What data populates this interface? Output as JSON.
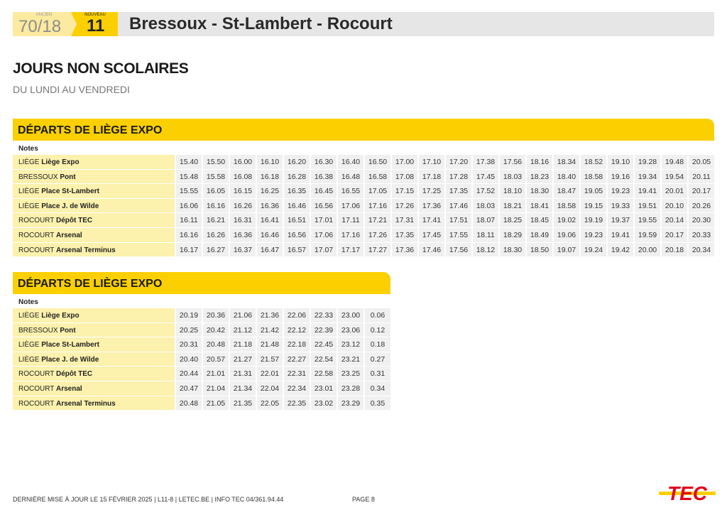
{
  "header": {
    "old_label": "ANCIEN",
    "old_number": "70/18",
    "new_label": "NOUVEAU",
    "new_number": "11",
    "title": "Bressoux - St-Lambert - Rocourt"
  },
  "section": {
    "title": "JOURS NON SCOLAIRES",
    "subtitle": "DU LUNDI AU VENDREDI"
  },
  "tables": [
    {
      "title": "DÉPARTS DE LIÈGE EXPO",
      "notes_label": "Notes",
      "rows": [
        {
          "town": "LIÈGE",
          "stop": "Liège Expo",
          "times": [
            "15.40",
            "15.50",
            "16.00",
            "16.10",
            "16.20",
            "16.30",
            "16.40",
            "16.50",
            "17.00",
            "17.10",
            "17.20",
            "17.38",
            "17.56",
            "18.16",
            "18.34",
            "18.52",
            "19.10",
            "19.28",
            "19.48",
            "20.05"
          ]
        },
        {
          "town": "BRESSOUX",
          "stop": "Pont",
          "times": [
            "15.48",
            "15.58",
            "16.08",
            "16.18",
            "16.28",
            "16.38",
            "16.48",
            "16.58",
            "17.08",
            "17.18",
            "17.28",
            "17.45",
            "18.03",
            "18.23",
            "18.40",
            "18.58",
            "19.16",
            "19.34",
            "19.54",
            "20.11"
          ]
        },
        {
          "town": "LIÈGE",
          "stop": "Place St-Lambert",
          "times": [
            "15.55",
            "16.05",
            "16.15",
            "16.25",
            "16.35",
            "16.45",
            "16.55",
            "17.05",
            "17.15",
            "17.25",
            "17.35",
            "17.52",
            "18.10",
            "18.30",
            "18.47",
            "19.05",
            "19.23",
            "19.41",
            "20.01",
            "20.17"
          ]
        },
        {
          "town": "LIÈGE",
          "stop": "Place J. de Wilde",
          "times": [
            "16.06",
            "16.16",
            "16.26",
            "16.36",
            "16.46",
            "16.56",
            "17.06",
            "17.16",
            "17.26",
            "17.36",
            "17.46",
            "18.03",
            "18.21",
            "18.41",
            "18.58",
            "19.15",
            "19.33",
            "19.51",
            "20.10",
            "20.26"
          ]
        },
        {
          "town": "ROCOURT",
          "stop": "Dépôt TEC",
          "times": [
            "16.11",
            "16.21",
            "16.31",
            "16.41",
            "16.51",
            "17.01",
            "17.11",
            "17.21",
            "17.31",
            "17.41",
            "17.51",
            "18.07",
            "18.25",
            "18.45",
            "19.02",
            "19.19",
            "19.37",
            "19.55",
            "20.14",
            "20.30"
          ]
        },
        {
          "town": "ROCOURT",
          "stop": "Arsenal",
          "times": [
            "16.16",
            "16.26",
            "16.36",
            "16.46",
            "16.56",
            "17.06",
            "17.16",
            "17.26",
            "17.35",
            "17.45",
            "17.55",
            "18.11",
            "18.29",
            "18.49",
            "19.06",
            "19.23",
            "19.41",
            "19.59",
            "20.17",
            "20.33"
          ]
        },
        {
          "town": "ROCOURT",
          "stop": "Arsenal Terminus",
          "times": [
            "16.17",
            "16.27",
            "16.37",
            "16.47",
            "16.57",
            "17.07",
            "17.17",
            "17.27",
            "17.36",
            "17.46",
            "17.56",
            "18.12",
            "18.30",
            "18.50",
            "19.07",
            "19.24",
            "19.42",
            "20.00",
            "20.18",
            "20.34"
          ]
        }
      ]
    },
    {
      "title": "DÉPARTS DE LIÈGE EXPO",
      "notes_label": "Notes",
      "rows": [
        {
          "town": "LIÈGE",
          "stop": "Liège Expo",
          "times": [
            "20.19",
            "20.36",
            "21.06",
            "21.36",
            "22.06",
            "22.33",
            "23.00",
            "0.06"
          ]
        },
        {
          "town": "BRESSOUX",
          "stop": "Pont",
          "times": [
            "20.25",
            "20.42",
            "21.12",
            "21.42",
            "22.12",
            "22.39",
            "23.06",
            "0.12"
          ]
        },
        {
          "town": "LIÈGE",
          "stop": "Place St-Lambert",
          "times": [
            "20.31",
            "20.48",
            "21.18",
            "21.48",
            "22.18",
            "22.45",
            "23.12",
            "0.18"
          ]
        },
        {
          "town": "LIÈGE",
          "stop": "Place J. de Wilde",
          "times": [
            "20.40",
            "20.57",
            "21.27",
            "21.57",
            "22.27",
            "22.54",
            "23.21",
            "0.27"
          ]
        },
        {
          "town": "ROCOURT",
          "stop": "Dépôt TEC",
          "times": [
            "20.44",
            "21.01",
            "21.31",
            "22.01",
            "22.31",
            "22.58",
            "23.25",
            "0.31"
          ]
        },
        {
          "town": "ROCOURT",
          "stop": "Arsenal",
          "times": [
            "20.47",
            "21.04",
            "21.34",
            "22.04",
            "22.34",
            "23.01",
            "23.28",
            "0.34"
          ]
        },
        {
          "town": "ROCOURT",
          "stop": "Arsenal Terminus",
          "times": [
            "20.48",
            "21.05",
            "21.35",
            "22.05",
            "22.35",
            "23.02",
            "23.29",
            "0.35"
          ]
        }
      ]
    }
  ],
  "footer": {
    "text": "DERNIÈRE MISE À JOUR LE 15 FÉVRIER 2025  |  L11-8  |  LETEC.BE  |  INFO TEC 04/361.94.44",
    "page": "PAGE 8",
    "logo": "TEC"
  },
  "colors": {
    "yellow": "#fcd000",
    "pale_yellow": "#fcf1ad",
    "logo_red": "#e3001b"
  }
}
